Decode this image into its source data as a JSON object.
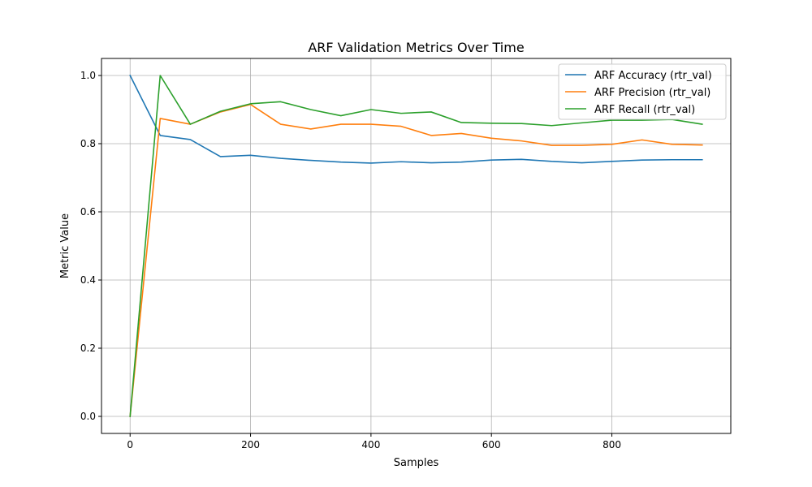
{
  "chart_data": {
    "type": "line",
    "title": "ARF Validation Metrics Over Time",
    "xlabel": "Samples",
    "ylabel": "Metric Value",
    "xlim": [
      -47.5,
      997.5
    ],
    "ylim": [
      -0.05,
      1.05
    ],
    "xticks": [
      0,
      200,
      400,
      600,
      800
    ],
    "yticks": [
      0.0,
      0.2,
      0.4,
      0.6,
      0.8,
      1.0
    ],
    "xtick_labels": [
      "0",
      "200",
      "400",
      "600",
      "800"
    ],
    "ytick_labels": [
      "0.0",
      "0.2",
      "0.4",
      "0.6",
      "0.8",
      "1.0"
    ],
    "grid": true,
    "legend_position": "top-right",
    "x": [
      0,
      50,
      100,
      150,
      200,
      250,
      300,
      350,
      400,
      450,
      500,
      550,
      600,
      650,
      700,
      750,
      800,
      850,
      900,
      950
    ],
    "series": [
      {
        "name": "ARF Accuracy (rtr_val)",
        "color": "#1f77b4",
        "values": [
          1.0,
          0.824,
          0.812,
          0.762,
          0.766,
          0.757,
          0.751,
          0.746,
          0.743,
          0.747,
          0.744,
          0.746,
          0.752,
          0.754,
          0.748,
          0.744,
          0.748,
          0.752,
          0.753,
          0.753
        ]
      },
      {
        "name": "ARF Precision (rtr_val)",
        "color": "#ff7f0e",
        "values": [
          0.0,
          0.874,
          0.857,
          0.893,
          0.915,
          0.857,
          0.843,
          0.857,
          0.857,
          0.851,
          0.824,
          0.83,
          0.816,
          0.808,
          0.795,
          0.795,
          0.798,
          0.811,
          0.798,
          0.796
        ]
      },
      {
        "name": "ARF Recall (rtr_val)",
        "color": "#2ca02c",
        "values": [
          0.0,
          1.0,
          0.857,
          0.895,
          0.917,
          0.923,
          0.9,
          0.882,
          0.9,
          0.889,
          0.893,
          0.862,
          0.86,
          0.859,
          0.853,
          0.861,
          0.869,
          0.869,
          0.871,
          0.857
        ]
      }
    ]
  }
}
